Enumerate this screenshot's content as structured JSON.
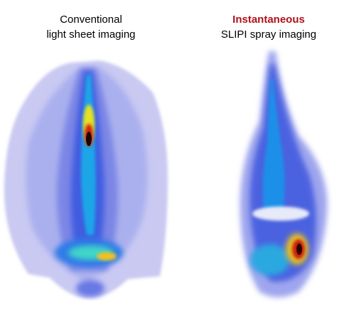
{
  "captions": [
    {
      "lines": [
        "Conventional",
        "light sheet imaging"
      ]
    },
    {
      "lines": [
        "Instantaneous",
        "SLIPI spray imaging"
      ]
    }
  ]
}
